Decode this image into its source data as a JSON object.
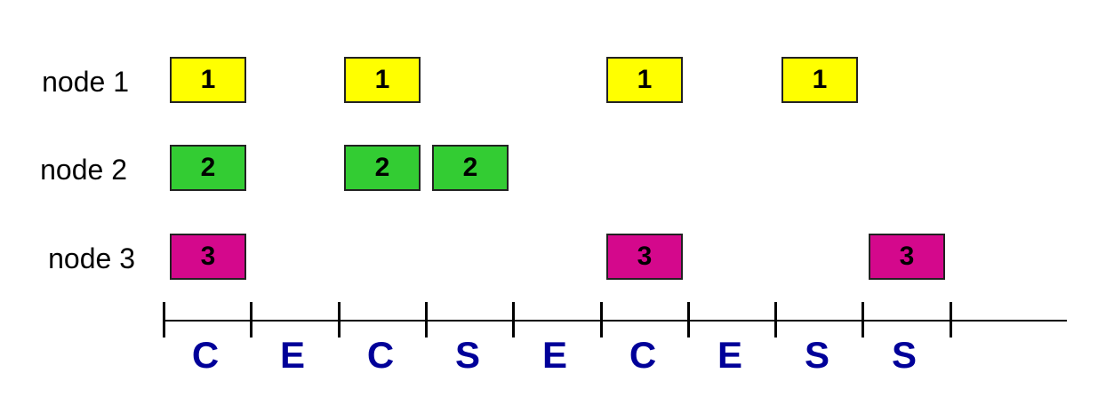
{
  "colors": {
    "node1": "#ffff00",
    "node2": "#33cc33",
    "node3": "#d4088c",
    "slot_letter": "#000099"
  },
  "rows": [
    {
      "label": "node 1",
      "block_text": "1",
      "color_key": "node1",
      "slots": [
        0,
        2,
        5,
        7
      ]
    },
    {
      "label": "node 2",
      "block_text": "2",
      "color_key": "node2",
      "slots": [
        0,
        2,
        3
      ]
    },
    {
      "label": "node 3",
      "block_text": "3",
      "color_key": "node3",
      "slots": [
        0,
        5,
        8
      ]
    }
  ],
  "slots": [
    "C",
    "E",
    "C",
    "S",
    "E",
    "C",
    "E",
    "S",
    "S"
  ]
}
